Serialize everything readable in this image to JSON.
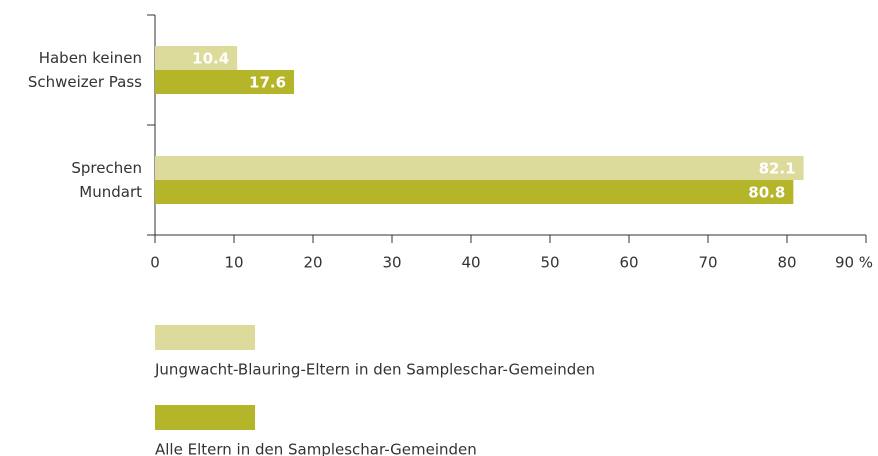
{
  "chart_data": {
    "type": "bar",
    "orientation": "horizontal",
    "categories": [
      "Haben keinen\nSchweizer Pass",
      "Sprechen\nMundart"
    ],
    "series": [
      {
        "name": "Jungwacht-Blauring-Eltern in den Sampleschar-Gemeinden",
        "color": "#dcdb9c",
        "values": [
          10.4,
          82.1
        ]
      },
      {
        "name": "Alle Eltern in den Sampleschar-Gemeinden",
        "color": "#b5b52a",
        "values": [
          17.6,
          80.8
        ]
      }
    ],
    "xlim": [
      0,
      90
    ],
    "xticks": [
      0,
      10,
      20,
      30,
      40,
      50,
      60,
      70,
      80,
      {
        "value": 90,
        "label": "90 %"
      }
    ]
  }
}
